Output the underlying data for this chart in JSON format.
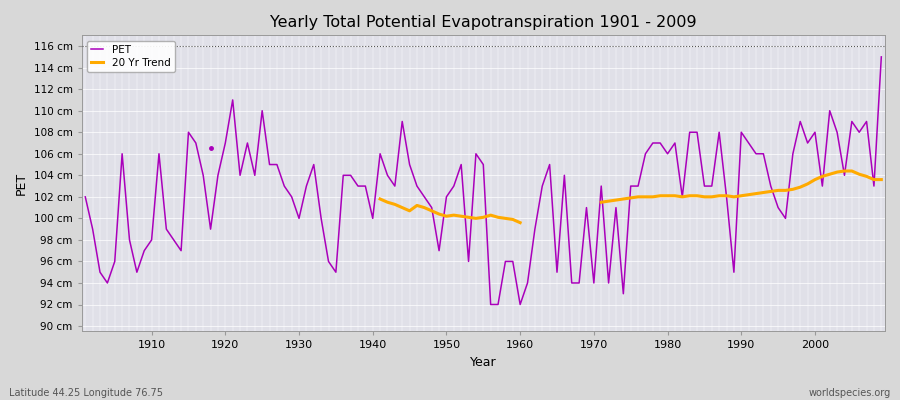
{
  "title": "Yearly Total Potential Evapotranspiration 1901 - 2009",
  "xlabel": "Year",
  "ylabel": "PET",
  "bottom_left_label": "Latitude 44.25 Longitude 76.75",
  "bottom_right_label": "worldspecies.org",
  "pet_color": "#aa00bb",
  "trend_color": "#ffaa00",
  "fig_bg_color": "#d8d8d8",
  "plot_bg_color": "#e0e0e8",
  "ylim": [
    89.5,
    117
  ],
  "ytick_labels": [
    "90 cm",
    "92 cm",
    "94 cm",
    "96 cm",
    "98 cm",
    "100 cm",
    "102 cm",
    "104 cm",
    "106 cm",
    "108 cm",
    "110 cm",
    "112 cm",
    "114 cm",
    "116 cm"
  ],
  "ytick_values": [
    90,
    92,
    94,
    96,
    98,
    100,
    102,
    104,
    106,
    108,
    110,
    112,
    114,
    116
  ],
  "years": [
    1901,
    1902,
    1903,
    1904,
    1905,
    1906,
    1907,
    1908,
    1909,
    1910,
    1911,
    1912,
    1913,
    1914,
    1915,
    1916,
    1917,
    1918,
    1919,
    1920,
    1921,
    1922,
    1923,
    1924,
    1925,
    1926,
    1927,
    1928,
    1929,
    1930,
    1931,
    1932,
    1933,
    1934,
    1935,
    1936,
    1937,
    1938,
    1939,
    1940,
    1941,
    1942,
    1943,
    1944,
    1945,
    1946,
    1947,
    1948,
    1949,
    1950,
    1951,
    1952,
    1953,
    1954,
    1955,
    1956,
    1957,
    1958,
    1959,
    1960,
    1961,
    1962,
    1963,
    1964,
    1965,
    1966,
    1967,
    1968,
    1969,
    1970,
    1971,
    1972,
    1973,
    1974,
    1975,
    1976,
    1977,
    1978,
    1979,
    1980,
    1981,
    1982,
    1983,
    1984,
    1985,
    1986,
    1987,
    1988,
    1989,
    1990,
    1991,
    1992,
    1993,
    1994,
    1995,
    1996,
    1997,
    1998,
    1999,
    2000,
    2001,
    2002,
    2003,
    2004,
    2005,
    2006,
    2007,
    2008,
    2009
  ],
  "pet_values": [
    102,
    99,
    95,
    94,
    96,
    106,
    98,
    95,
    97,
    98,
    106,
    99,
    98,
    97,
    108,
    107,
    104,
    99,
    104,
    107,
    111,
    104,
    107,
    104,
    110,
    105,
    105,
    103,
    102,
    100,
    103,
    105,
    100,
    96,
    95,
    104,
    104,
    103,
    103,
    100,
    106,
    104,
    103,
    109,
    105,
    103,
    102,
    101,
    97,
    102,
    103,
    105,
    96,
    106,
    105,
    92,
    92,
    96,
    96,
    92,
    94,
    99,
    103,
    105,
    95,
    104,
    94,
    94,
    101,
    94,
    103,
    94,
    101,
    93,
    103,
    103,
    106,
    107,
    107,
    106,
    107,
    102,
    108,
    108,
    103,
    103,
    108,
    102,
    95,
    108,
    107,
    106,
    106,
    103,
    101,
    100,
    106,
    109,
    107,
    108,
    103,
    110,
    108,
    104,
    109,
    108,
    109,
    103,
    115
  ],
  "trend_seg1_years": [
    1941,
    1942,
    1943,
    1944,
    1945,
    1946,
    1947,
    1948,
    1949,
    1950,
    1951,
    1952,
    1953,
    1954,
    1955,
    1956,
    1957,
    1958,
    1959,
    1960
  ],
  "trend_seg1_values": [
    101.8,
    101.5,
    101.3,
    101.0,
    100.7,
    101.2,
    101.0,
    100.7,
    100.4,
    100.2,
    100.3,
    100.2,
    100.1,
    100.0,
    100.1,
    100.3,
    100.1,
    100.0,
    99.9,
    99.6
  ],
  "trend_seg2_years": [
    1971,
    1972,
    1973,
    1974,
    1975,
    1976,
    1977,
    1978,
    1979,
    1980,
    1981,
    1982,
    1983,
    1984,
    1985,
    1986,
    1987,
    1988,
    1989,
    1990,
    1991,
    1992,
    1993,
    1994,
    1995,
    1996,
    1997,
    1998,
    1999,
    2000,
    2001,
    2002,
    2003,
    2004,
    2005,
    2006,
    2007,
    2008,
    2009
  ],
  "trend_seg2_values": [
    101.5,
    101.6,
    101.7,
    101.8,
    101.9,
    102.0,
    102.0,
    102.0,
    102.1,
    102.1,
    102.1,
    102.0,
    102.1,
    102.1,
    102.0,
    102.0,
    102.1,
    102.1,
    102.0,
    102.1,
    102.2,
    102.3,
    102.4,
    102.5,
    102.6,
    102.6,
    102.7,
    102.9,
    103.2,
    103.6,
    103.9,
    104.1,
    104.3,
    104.4,
    104.4,
    104.1,
    103.9,
    103.6,
    103.6
  ],
  "outlier_year": 1918,
  "outlier_value": 106.5,
  "dotted_line_y": 116,
  "xlim": [
    1900.5,
    2009.5
  ],
  "xticks": [
    1910,
    1920,
    1930,
    1940,
    1950,
    1960,
    1970,
    1980,
    1990,
    2000
  ]
}
